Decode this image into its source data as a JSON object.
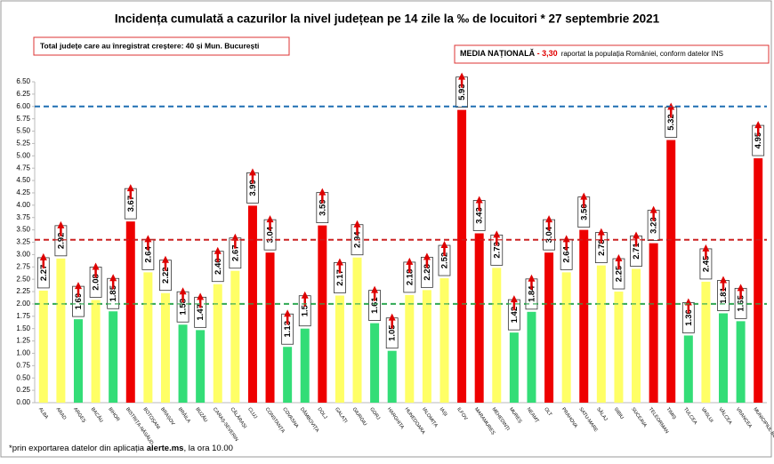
{
  "chart_data": {
    "type": "bar",
    "title": "Incidența cumulată a cazurilor la nivel județean pe 14 zile la ‰ de locuitori * 27 septembrie 2021",
    "note": "Total județe care au înregistrat creștere:  40 și Mun. București",
    "national_label": "MEDIA NAȚIONALĂ",
    "national_value": " - 3,30",
    "national_text": "raportat la populația României, conform datelor INS",
    "footnote": [
      "*prin exportarea datelor din aplicația ",
      "alerte.ms",
      ", la ora 10.00"
    ],
    "categories": [
      "ALBA",
      "ARAD",
      "ARGEȘ",
      "BACĂU",
      "BIHOR",
      "BISTRIȚA-NĂSĂUD",
      "BOTOȘANI",
      "BRAȘOV",
      "BRĂILA",
      "BUZĂU",
      "CARAȘ-SEVERIN",
      "CĂLĂRAȘI",
      "CLUJ",
      "CONSTANȚA",
      "COVASNA",
      "DÂMBOVIȚA",
      "DOLJ",
      "GALAȚI",
      "GIURGIU",
      "GORJ",
      "HARGHITA",
      "HUNEDOARA",
      "IALOMIȚA",
      "IAȘI",
      "ILFOV",
      "MARAMUREȘ",
      "MEHEDINȚI",
      "MUREȘ",
      "NEAMȚ",
      "OLT",
      "PRAHOVA",
      "SATU-MARE",
      "SĂLAJ",
      "SIBIU",
      "SUCEAVA",
      "TELEORMAN",
      "TIMIȘ",
      "TULCEA",
      "VASLUI",
      "VÂLCEA",
      "VRANCEA",
      "MUNICIPIUL BUCUREȘTI"
    ],
    "values": [
      2.27,
      2.92,
      1.69,
      2.08,
      1.85,
      3.67,
      2.64,
      2.22,
      1.58,
      1.47,
      2.4,
      2.67,
      3.99,
      3.04,
      1.13,
      1.5,
      3.59,
      2.17,
      2.94,
      1.61,
      1.05,
      2.18,
      2.28,
      2.52,
      5.93,
      3.43,
      2.73,
      1.42,
      1.84,
      3.04,
      2.64,
      3.5,
      2.78,
      2.25,
      2.71,
      3.23,
      5.32,
      1.36,
      2.45,
      1.81,
      1.65,
      4.95
    ],
    "value_labels": [
      "2.27",
      "2.92",
      "1.69",
      "2.08",
      "1.85",
      "3.67",
      "2.64",
      "2.22",
      "1.58",
      "1.47",
      "2.40",
      "2.67",
      "3.99",
      "3.04",
      "1.13",
      "1.5",
      "3.59",
      "2.17",
      "2.94",
      "1.61",
      "1.05",
      "2.18",
      "2.28",
      "2.52",
      "5.93",
      "3.43",
      "2.73",
      "1.42",
      "1.84",
      "3.04",
      "2.64",
      "3.50",
      "2.78",
      "2.25",
      "2.71",
      "3.23",
      "5.32",
      "1.36",
      "2.45",
      "1.81",
      "1.65",
      "4.95"
    ],
    "colors": [
      "#ffff66",
      "#ffff66",
      "#33dd77",
      "#ffff66",
      "#33dd77",
      "#ee0000",
      "#ffff66",
      "#ffff66",
      "#33dd77",
      "#33dd77",
      "#ffff66",
      "#ffff66",
      "#ee0000",
      "#ee0000",
      "#33dd77",
      "#33dd77",
      "#ee0000",
      "#ffff66",
      "#ffff66",
      "#33dd77",
      "#33dd77",
      "#ffff66",
      "#ffff66",
      "#ffff66",
      "#ee0000",
      "#ee0000",
      "#ffff66",
      "#33dd77",
      "#33dd77",
      "#ee0000",
      "#ffff66",
      "#ee0000",
      "#ffff66",
      "#ffff66",
      "#ffff66",
      "#ee0000",
      "#ee0000",
      "#33dd77",
      "#ffff66",
      "#33dd77",
      "#33dd77",
      "#ee0000"
    ],
    "ylim": [
      0,
      6.5
    ],
    "yticks": [
      {
        "value": 0,
        "label": "0.00"
      },
      {
        "value": 0.25,
        "label": "0.25"
      },
      {
        "value": 0.5,
        "label": "0.50"
      },
      {
        "value": 0.75,
        "label": "0.75"
      },
      {
        "value": 1,
        "label": "1.00"
      },
      {
        "value": 1.25,
        "label": "1.25"
      },
      {
        "value": 1.5,
        "label": "1.50"
      },
      {
        "value": 1.75,
        "label": "1.75"
      },
      {
        "value": 2,
        "label": "2.00"
      },
      {
        "value": 2.25,
        "label": "2.25"
      },
      {
        "value": 2.5,
        "label": "2.50"
      },
      {
        "value": 2.75,
        "label": "2.75"
      },
      {
        "value": 3,
        "label": "3.00"
      },
      {
        "value": 3.25,
        "label": "3.25"
      },
      {
        "value": 3.5,
        "label": "3.50"
      },
      {
        "value": 3.75,
        "label": "3.75"
      },
      {
        "value": 4,
        "label": "4.00"
      },
      {
        "value": 4.25,
        "label": "4.25"
      },
      {
        "value": 4.5,
        "label": "4.50"
      },
      {
        "value": 4.75,
        "label": "4.75"
      },
      {
        "value": 5,
        "label": "5.00"
      },
      {
        "value": 5.25,
        "label": "5.25"
      },
      {
        "value": 5.5,
        "label": "5.50"
      },
      {
        "value": 5.75,
        "label": "5.75"
      },
      {
        "value": 6,
        "label": "6.00"
      },
      {
        "value": 6.25,
        "label": "6.25"
      },
      {
        "value": 6.5,
        "label": "6.50"
      }
    ],
    "reference_lines": [
      {
        "value": 6,
        "color": "#1f6fb2"
      },
      {
        "value": 3.3,
        "color": "#cc2222"
      },
      {
        "value": 2,
        "color": "#33aa55"
      }
    ]
  }
}
